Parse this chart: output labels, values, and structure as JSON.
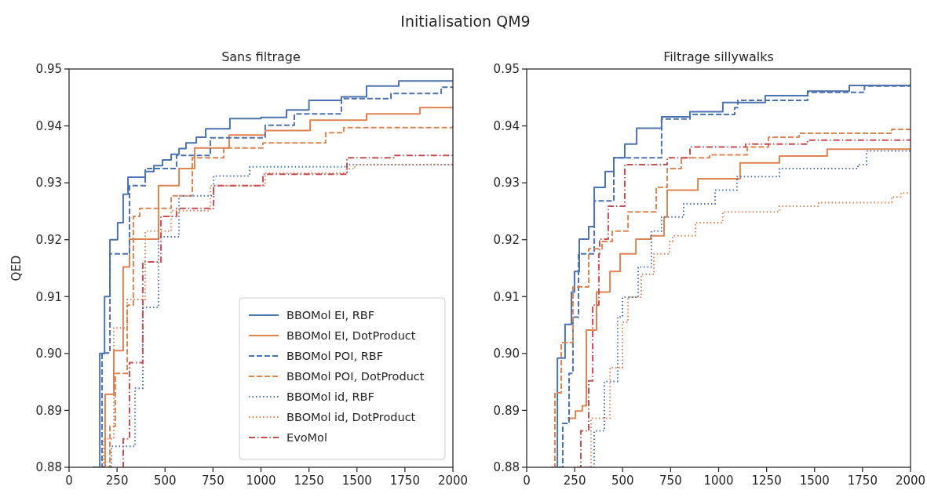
{
  "chart_data": [
    {
      "type": "other",
      "title": "Initialisation QM9"
    },
    {
      "type": "step",
      "title": "Sans filtrage",
      "ylabel": "QED",
      "xlim": [
        0,
        2000
      ],
      "xticks": [
        0,
        250,
        500,
        750,
        1000,
        1250,
        1500,
        1750,
        2000
      ],
      "ylim": [
        0.88,
        0.95
      ],
      "yticks": [
        0.88,
        0.89,
        {
          "value": 0.9,
          "label": "0.90"
        },
        0.91,
        0.92,
        0.93,
        0.94,
        0.95
      ],
      "grid": false,
      "legend": "bottom right",
      "series": [
        {
          "name": "BBOMol EI, RBF",
          "color": "#4c72b0",
          "line_style": "solid",
          "x": [
            135,
            160,
            185,
            213,
            253,
            282,
            307,
            397,
            442,
            487,
            532,
            573,
            609,
            663,
            712,
            838,
            1000,
            1133,
            1250,
            1419,
            1550,
            1718,
            2000
          ],
          "values": [
            0.88,
            0.9,
            0.91,
            0.92,
            0.923,
            0.928,
            0.931,
            0.932,
            0.933,
            0.934,
            0.935,
            0.936,
            0.937,
            0.938,
            0.9395,
            0.9413,
            0.9415,
            0.9428,
            0.9445,
            0.9451,
            0.947,
            0.9479,
            0.948
          ]
        },
        {
          "name": "BBOMol EI, DotProduct",
          "color": "#dd8452",
          "line_style": "solid",
          "x": [
            175,
            188,
            233,
            282,
            315,
            466,
            573,
            654,
            834,
            1022,
            1256,
            1550,
            1828,
            2000
          ],
          "values": [
            0.88,
            0.8928,
            0.9005,
            0.9152,
            0.9201,
            0.9295,
            0.9325,
            0.9361,
            0.9384,
            0.9392,
            0.941,
            0.9421,
            0.9432,
            0.9432
          ]
        },
        {
          "name": "BBOMol POI, RBF",
          "color": "#4c72b0",
          "line_style": "dashed",
          "x": [
            123,
            172,
            213,
            315,
            397,
            560,
            736,
            1022,
            1174,
            1419,
            1677,
            1939,
            2000
          ],
          "values": [
            0.88,
            0.9001,
            0.9175,
            0.9295,
            0.9325,
            0.9348,
            0.9379,
            0.9401,
            0.9421,
            0.9448,
            0.9457,
            0.9468,
            0.9468
          ]
        },
        {
          "name": "BBOMol POI, DotProduct",
          "color": "#dd8452",
          "line_style": "dashed",
          "x": [
            196,
            213,
            241,
            303,
            335,
            368,
            532,
            642,
            806,
            1010,
            1337,
            1431,
            2000
          ],
          "values": [
            0.88,
            0.8872,
            0.8965,
            0.9085,
            0.9241,
            0.9255,
            0.9277,
            0.9344,
            0.9361,
            0.937,
            0.9388,
            0.9397,
            0.9402
          ]
        },
        {
          "name": "BBOMol id, RBF",
          "color": "#4c72b0",
          "line_style": "dotted",
          "x": [
            204,
            221,
            344,
            384,
            466,
            573,
            753,
            941,
            1448,
            2000
          ],
          "values": [
            0.88,
            0.8837,
            0.8939,
            0.9081,
            0.9205,
            0.9277,
            0.9312,
            0.9328,
            0.9332,
            0.9333
          ]
        },
        {
          "name": "BBOMol id, DotProduct",
          "color": "#dd8452",
          "line_style": "dotted",
          "x": [
            164,
            180,
            233,
            303,
            397,
            532,
            736,
            1022,
            1448,
            1489,
            2000
          ],
          "values": [
            0.88,
            0.885,
            0.9045,
            0.9095,
            0.9215,
            0.9251,
            0.9295,
            0.9317,
            0.9325,
            0.9332,
            0.9335
          ]
        },
        {
          "name": "EvoMol",
          "color": "#c44e52",
          "line_style": "dashdot",
          "x": [
            278,
            282,
            315,
            384,
            479,
            560,
            753,
            1010,
            1448,
            1693,
            2000
          ],
          "values": [
            0.88,
            0.885,
            0.8984,
            0.9161,
            0.9241,
            0.9255,
            0.9295,
            0.9315,
            0.9344,
            0.9348,
            0.9349
          ]
        }
      ]
    },
    {
      "type": "step",
      "title": "Filtrage sillywalks",
      "xlim": [
        0,
        2000
      ],
      "xticks": [
        0,
        250,
        500,
        750,
        1000,
        1250,
        1500,
        1750,
        2000
      ],
      "ylim": [
        0.88,
        0.95
      ],
      "yticks": [
        0.88,
        0.89,
        {
          "value": 0.9,
          "label": "0.90"
        },
        0.91,
        0.92,
        0.93,
        0.94,
        0.95
      ],
      "grid": false,
      "series": [
        {
          "color": "#4c72b0",
          "line_style": "solid",
          "x": [
            127,
            160,
            200,
            233,
            249,
            274,
            323,
            352,
            409,
            454,
            511,
            573,
            703,
            851,
            1022,
            1243,
            1464,
            1681,
            2000
          ],
          "values": [
            0.88,
            0.8992,
            0.9051,
            0.9108,
            0.9144,
            0.9201,
            0.9223,
            0.9292,
            0.932,
            0.9344,
            0.9368,
            0.9396,
            0.9416,
            0.9425,
            0.9441,
            0.9453,
            0.9461,
            0.9471,
            0.9473
          ]
        },
        {
          "color": "#dd8452",
          "line_style": "solid",
          "x": [
            213,
            254,
            290,
            311,
            364,
            434,
            487,
            569,
            646,
            716,
            732,
            892,
            1112,
            1317,
            1566,
            2000
          ],
          "values": [
            0.8886,
            0.8899,
            0.8908,
            0.9041,
            0.9108,
            0.9144,
            0.9175,
            0.9201,
            0.9207,
            0.924,
            0.9287,
            0.9307,
            0.9335,
            0.9347,
            0.9359,
            0.936
          ]
        },
        {
          "color": "#4c72b0",
          "line_style": "dashed",
          "x": [
            168,
            188,
            221,
            241,
            270,
            352,
            454,
            703,
            851,
            1084,
            1100,
            1464,
            1760,
            2000
          ],
          "values": [
            0.88,
            0.8877,
            0.8965,
            0.9064,
            0.9175,
            0.9268,
            0.9344,
            0.9412,
            0.942,
            0.9432,
            0.9445,
            0.9459,
            0.947,
            0.947
          ]
        },
        {
          "color": "#dd8452",
          "line_style": "dashed",
          "x": [
            139,
            147,
            180,
            241,
            323,
            393,
            446,
            528,
            675,
            732,
            806,
            953,
            1149,
            1260,
            1419,
            1902,
            2000
          ],
          "values": [
            0.88,
            0.8931,
            0.9019,
            0.9117,
            0.9184,
            0.9197,
            0.9215,
            0.9249,
            0.9292,
            0.9325,
            0.9344,
            0.9349,
            0.9363,
            0.938,
            0.9387,
            0.9394,
            0.9394
          ]
        },
        {
          "color": "#4c72b0",
          "line_style": "dotted",
          "x": [
            311,
            352,
            405,
            474,
            499,
            581,
            650,
            703,
            818,
            982,
            1096,
            1317,
            1726,
            1771,
            2000
          ],
          "values": [
            0.88,
            0.8864,
            0.8951,
            0.9064,
            0.9099,
            0.9152,
            0.9215,
            0.924,
            0.9263,
            0.9287,
            0.9311,
            0.9325,
            0.9332,
            0.9356,
            0.9357
          ]
        },
        {
          "color": "#dd8452",
          "line_style": "dotted",
          "x": [
            282,
            335,
            434,
            499,
            528,
            597,
            663,
            744,
            761,
            879,
            1022,
            1317,
            1521,
            1902,
            1950,
            2000
          ],
          "values": [
            0.88,
            0.8886,
            0.8975,
            0.9055,
            0.9099,
            0.9139,
            0.9175,
            0.9197,
            0.9207,
            0.923,
            0.9249,
            0.9259,
            0.9265,
            0.9275,
            0.9282,
            0.9282
          ]
        },
        {
          "color": "#c44e52",
          "line_style": "dashdot",
          "x": [
            262,
            282,
            323,
            344,
            376,
            380,
            425,
            511,
            732,
            851,
            1141,
            1464,
            2000
          ],
          "values": [
            0.88,
            0.8864,
            0.8952,
            0.9085,
            0.9175,
            0.9201,
            0.9259,
            0.9332,
            0.9344,
            0.9363,
            0.9368,
            0.9375,
            0.9375
          ]
        }
      ]
    }
  ]
}
